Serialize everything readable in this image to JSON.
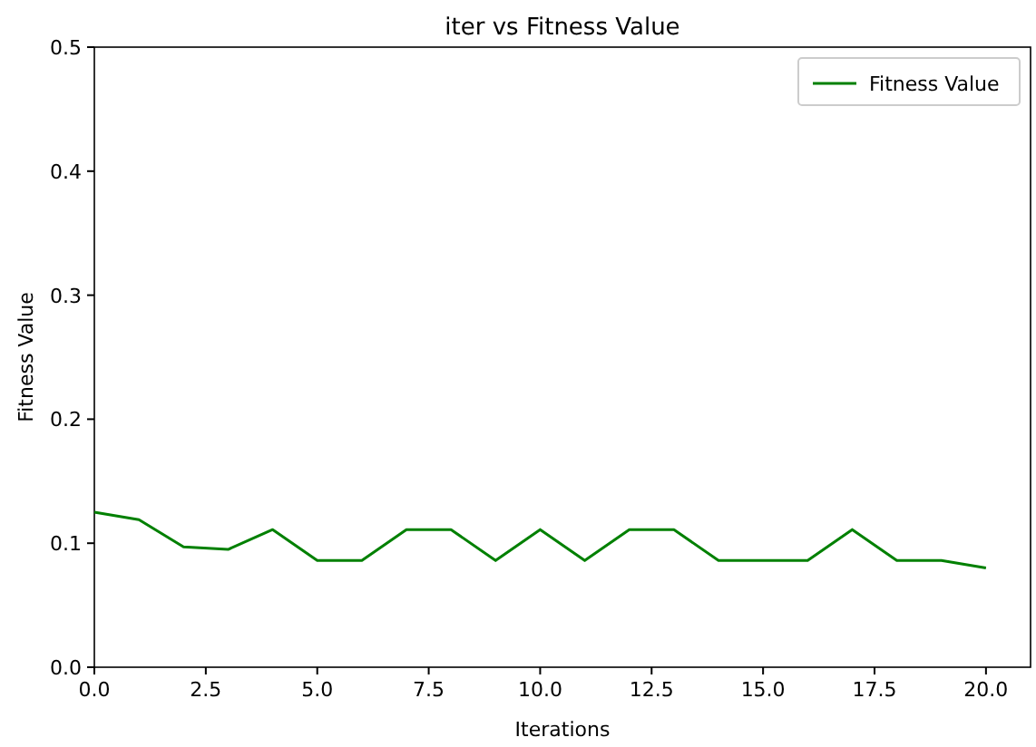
{
  "chart_data": {
    "type": "line",
    "title": "iter vs Fitness Value",
    "xlabel": "Iterations",
    "ylabel": "Fitness Value",
    "x": [
      0,
      1,
      2,
      3,
      4,
      5,
      6,
      7,
      8,
      9,
      10,
      11,
      12,
      13,
      14,
      15,
      16,
      17,
      18,
      19,
      20
    ],
    "series": [
      {
        "name": "Fitness Value",
        "color": "#008000",
        "values": [
          0.125,
          0.119,
          0.097,
          0.095,
          0.111,
          0.086,
          0.086,
          0.111,
          0.111,
          0.086,
          0.111,
          0.086,
          0.111,
          0.111,
          0.086,
          0.086,
          0.086,
          0.111,
          0.086,
          0.086,
          0.08
        ]
      }
    ],
    "xlim": [
      0,
      21
    ],
    "xticks": [
      {
        "value": 0,
        "label": "0.0"
      },
      {
        "value": 2.5,
        "label": "2.5"
      },
      {
        "value": 5,
        "label": "5.0"
      },
      {
        "value": 7.5,
        "label": "7.5"
      },
      {
        "value": 10,
        "label": "10.0"
      },
      {
        "value": 12.5,
        "label": "12.5"
      },
      {
        "value": 15,
        "label": "15.0"
      },
      {
        "value": 17.5,
        "label": "17.5"
      },
      {
        "value": 20,
        "label": "20.0"
      }
    ],
    "ylim": [
      0,
      0.5
    ],
    "yticks": [
      {
        "value": 0,
        "label": "0.0"
      },
      {
        "value": 0.1,
        "label": "0.1"
      },
      {
        "value": 0.2,
        "label": "0.2"
      },
      {
        "value": 0.3,
        "label": "0.3"
      },
      {
        "value": 0.4,
        "label": "0.4"
      },
      {
        "value": 0.5,
        "label": "0.5"
      }
    ],
    "legend": "top right",
    "grid": false,
    "marker": "none",
    "line_style": "solid"
  }
}
